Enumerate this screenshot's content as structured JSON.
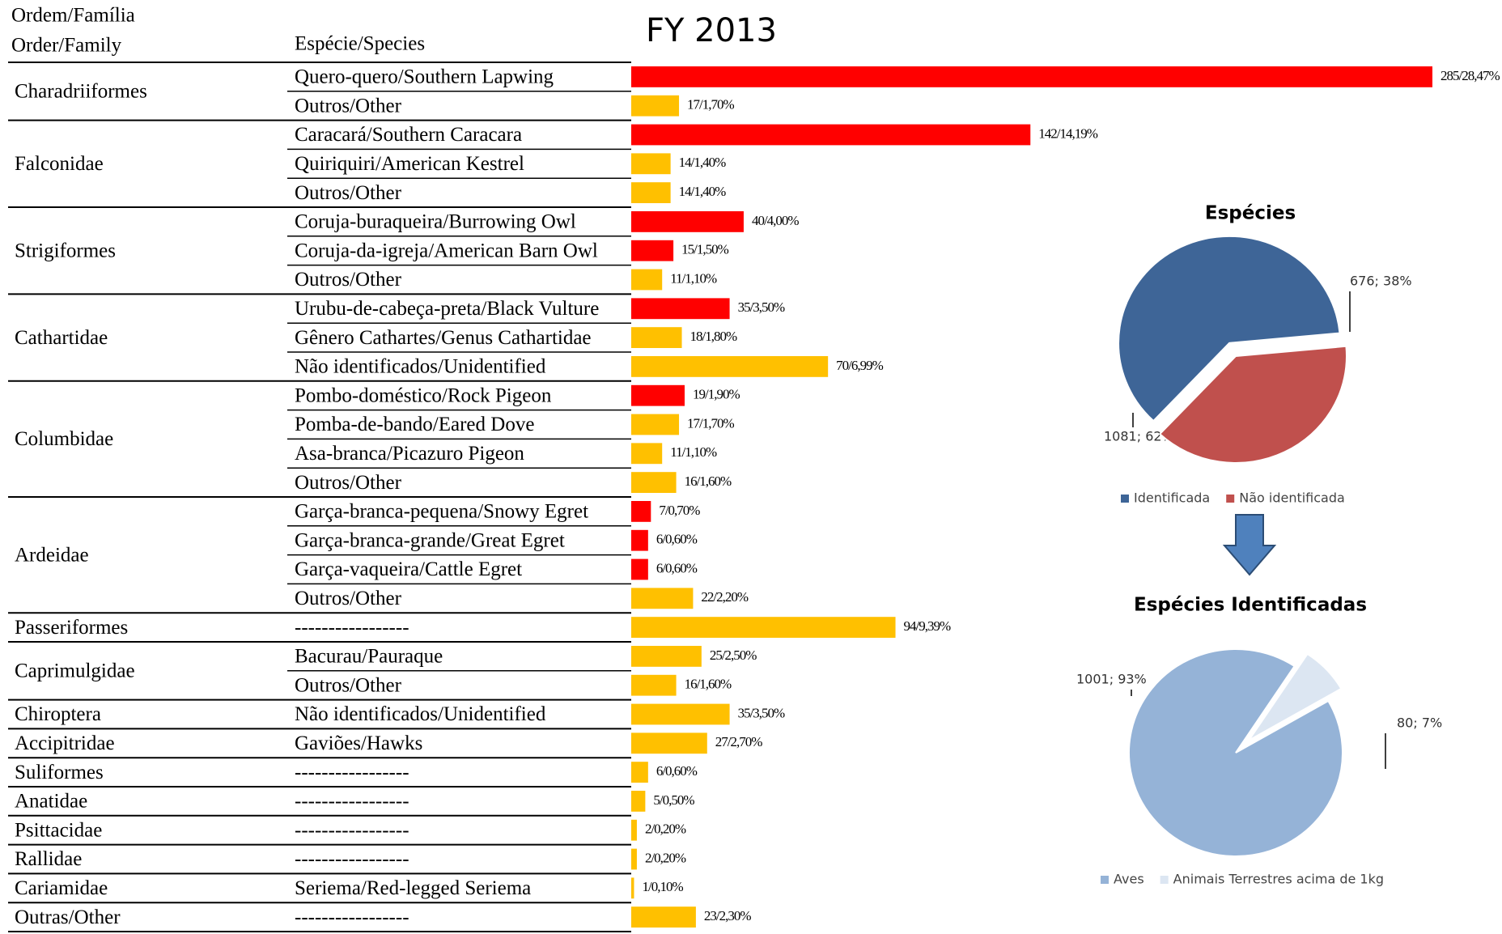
{
  "title": "FY 2013",
  "chart_data": [
    {
      "type": "bar",
      "column_headers": {
        "family": [
          "Ordem/Família",
          "Order/Family"
        ],
        "species": "Espécie/Species"
      },
      "groups": [
        {
          "name": "Charadriiformes",
          "categories": [
            "Quero-quero/Southern Lapwing",
            "Outros/Other"
          ],
          "values": [
            285,
            17
          ],
          "value_labels": [
            "285/28,47%",
            "17/1,70%"
          ],
          "colors": [
            "#ff0000",
            "#ffc000"
          ]
        },
        {
          "name": "Falconidae",
          "categories": [
            "Caracará/Southern Caracara",
            "Quiriquiri/American  Kestrel",
            "Outros/Other"
          ],
          "values": [
            142,
            14,
            14
          ],
          "value_labels": [
            "142/14,19%",
            "14/1,40%",
            "14/1,40%"
          ],
          "colors": [
            "#ff0000",
            "#ffc000",
            "#ffc000"
          ]
        },
        {
          "name": "Strigiformes",
          "categories": [
            "Coruja-buraqueira/Burrowing Owl",
            "Coruja-da-igreja/American Barn Owl",
            "Outros/Other"
          ],
          "values": [
            40,
            15,
            11
          ],
          "value_labels": [
            "40/4,00%",
            "15/1,50%",
            "11/1,10%"
          ],
          "colors": [
            "#ff0000",
            "#ff0000",
            "#ffc000"
          ]
        },
        {
          "name": "Cathartidae",
          "categories": [
            "Urubu-de-cabeça-preta/Black  Vulture",
            "Gênero Cathartes/Genus Cathartidae",
            "Não identificados/Unidentified"
          ],
          "values": [
            35,
            18,
            70
          ],
          "value_labels": [
            "35/3,50%",
            "18/1,80%",
            "70/6,99%"
          ],
          "colors": [
            "#ff0000",
            "#ffc000",
            "#ffc000"
          ]
        },
        {
          "name": "Columbidae",
          "categories": [
            "Pombo-doméstico/Rock Pigeon",
            "Pomba-de-bando/Eared Dove",
            "Asa-branca/Picazuro Pigeon",
            "Outros/Other"
          ],
          "values": [
            19,
            17,
            11,
            16
          ],
          "value_labels": [
            "19/1,90%",
            "17/1,70%",
            "11/1,10%",
            "16/1,60%"
          ],
          "colors": [
            "#ff0000",
            "#ffc000",
            "#ffc000",
            "#ffc000"
          ]
        },
        {
          "name": "Ardeidae",
          "categories": [
            "Garça-branca-pequena/Snowy Egret",
            "Garça-branca-grande/Great  Egret",
            "Garça-vaqueira/Cattle  Egret",
            "Outros/Other"
          ],
          "values": [
            7,
            6,
            6,
            22
          ],
          "value_labels": [
            "7/0,70%",
            "6/0,60%",
            "6/0,60%",
            "22/2,20%"
          ],
          "colors": [
            "#ff0000",
            "#ff0000",
            "#ff0000",
            "#ffc000"
          ]
        },
        {
          "name": "Passeriformes",
          "categories": [
            "-----------------"
          ],
          "values": [
            94
          ],
          "value_labels": [
            "94/9,39%"
          ],
          "colors": [
            "#ffc000"
          ]
        },
        {
          "name": "Caprimulgidae",
          "categories": [
            "Bacurau/Pauraque",
            "Outros/Other"
          ],
          "values": [
            25,
            16
          ],
          "value_labels": [
            "25/2,50%",
            "16/1,60%"
          ],
          "colors": [
            "#ffc000",
            "#ffc000"
          ]
        },
        {
          "name": "Chiroptera",
          "categories": [
            "Não identificados/Unidentified"
          ],
          "values": [
            35
          ],
          "value_labels": [
            "35/3,50%"
          ],
          "colors": [
            "#ffc000"
          ]
        },
        {
          "name": "Accipitridae",
          "categories": [
            "Gaviões/Hawks"
          ],
          "values": [
            27
          ],
          "value_labels": [
            "27/2,70%"
          ],
          "colors": [
            "#ffc000"
          ]
        },
        {
          "name": "Suliformes",
          "categories": [
            "-----------------"
          ],
          "values": [
            6
          ],
          "value_labels": [
            "6/0,60%"
          ],
          "colors": [
            "#ffc000"
          ]
        },
        {
          "name": "Anatidae",
          "categories": [
            "-----------------"
          ],
          "values": [
            5
          ],
          "value_labels": [
            "5/0,50%"
          ],
          "colors": [
            "#ffc000"
          ]
        },
        {
          "name": "Psittacidae",
          "categories": [
            "-----------------"
          ],
          "values": [
            2
          ],
          "value_labels": [
            "2/0,20%"
          ],
          "colors": [
            "#ffc000"
          ]
        },
        {
          "name": "Rallidae",
          "categories": [
            "-----------------"
          ],
          "values": [
            2
          ],
          "value_labels": [
            "2/0,20%"
          ],
          "colors": [
            "#ffc000"
          ]
        },
        {
          "name": "Cariamidae",
          "categories": [
            "Seriema/Red-legged  Seriema"
          ],
          "values": [
            1
          ],
          "value_labels": [
            "1/0,10%"
          ],
          "colors": [
            "#ffc000"
          ]
        },
        {
          "name": "Outras/Other",
          "categories": [
            "-----------------"
          ],
          "values": [
            23
          ],
          "value_labels": [
            "23/2,30%"
          ],
          "colors": [
            "#ffc000"
          ]
        }
      ]
    },
    {
      "type": "pie",
      "title": "Espécies",
      "categories": [
        "Identificada",
        "Não identificada"
      ],
      "values": [
        1081,
        676
      ],
      "value_labels": [
        "1081; 62%",
        "676; 38%"
      ],
      "colors": [
        "#3e6597",
        "#c0504d"
      ]
    },
    {
      "type": "pie",
      "title": "Espécies Identificadas",
      "categories": [
        "Aves",
        "Animais Terrestres acima de 1kg"
      ],
      "values": [
        1001,
        80
      ],
      "value_labels": [
        "1001; 93%",
        "80; 7%"
      ],
      "colors": [
        "#95b3d7",
        "#dce6f2"
      ]
    }
  ]
}
